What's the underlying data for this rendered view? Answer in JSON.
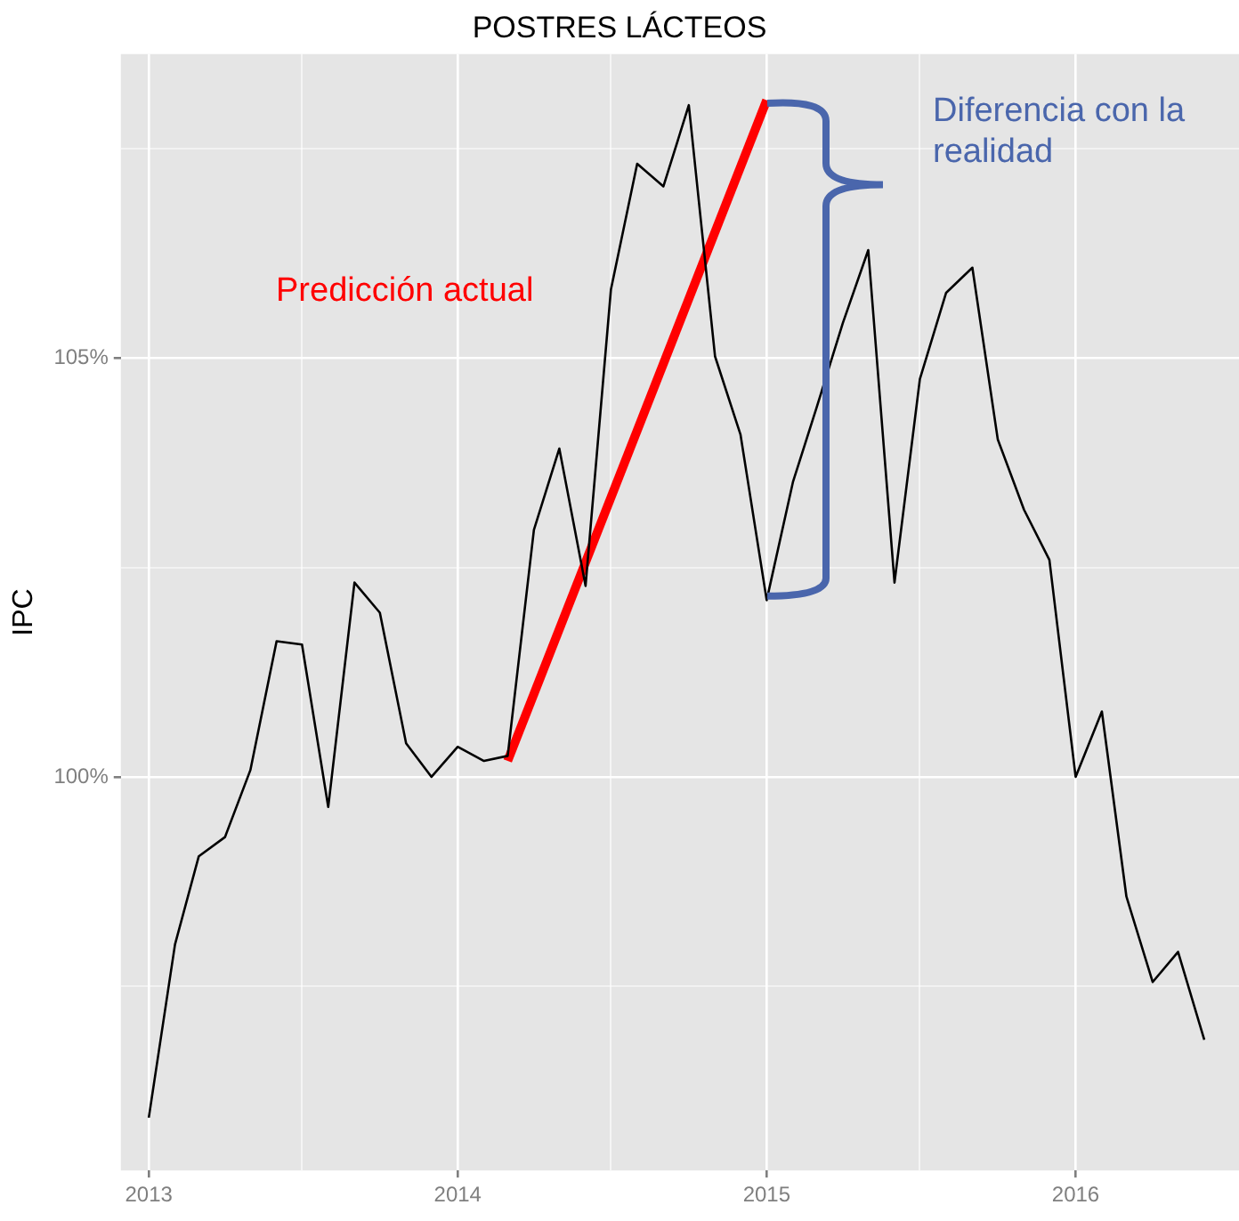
{
  "chart_data": {
    "type": "line",
    "title": "POSTRES LÁCTEOS",
    "ylabel": "IPC",
    "grid": true,
    "marker": "none",
    "line_style": "solid",
    "x": [
      "2013-01",
      "2013-02",
      "2013-03",
      "2013-04",
      "2013-05",
      "2013-06",
      "2013-07",
      "2013-08",
      "2013-09",
      "2013-10",
      "2013-11",
      "2013-12",
      "2014-01",
      "2014-02",
      "2014-03",
      "2014-04",
      "2014-05",
      "2014-06",
      "2014-07",
      "2014-08",
      "2014-09",
      "2014-10",
      "2014-11",
      "2014-12",
      "2015-01",
      "2015-02",
      "2015-03",
      "2015-04",
      "2015-05",
      "2015-06",
      "2015-07",
      "2015-08",
      "2015-09",
      "2015-10",
      "2015-11",
      "2015-12",
      "2016-01",
      "2016-02",
      "2016-03",
      "2016-04",
      "2016-05",
      "2016-06"
    ],
    "series": [
      {
        "color": "#000000",
        "values": [
          95.93,
          98.0,
          99.05,
          99.28,
          100.08,
          101.62,
          101.58,
          99.64,
          102.32,
          101.96,
          100.4,
          100.0,
          100.36,
          100.19,
          100.25,
          102.95,
          103.92,
          102.28,
          105.82,
          107.32,
          107.05,
          108.02,
          105.02,
          104.09,
          102.11,
          103.52,
          104.41,
          105.42,
          106.29,
          102.32,
          104.75,
          105.78,
          106.08,
          104.03,
          103.19,
          102.59,
          100.0,
          100.78,
          98.57,
          97.55,
          97.91,
          96.86
        ]
      },
      {
        "color": "#ff0000",
        "x": [
          "2014-03",
          "2015-01"
        ],
        "values": [
          100.19,
          108.08
        ]
      }
    ],
    "xlim": [
      "2012-11-29",
      "2016-07-12"
    ],
    "xticks": [
      "2013",
      {
        "value": "2013-07",
        "label": null
      },
      "2014",
      {
        "value": "2014-07",
        "label": null
      },
      "2015",
      {
        "value": "2015-07",
        "label": null
      },
      "2016"
    ],
    "ylim": [
      95.3,
      108.63
    ],
    "yticks": [
      {
        "value": 97.5,
        "label": null
      },
      {
        "value": 100,
        "label": "100%"
      },
      {
        "value": 102.5,
        "label": null
      },
      {
        "value": 105,
        "label": "105%"
      },
      {
        "value": 107.5,
        "label": null
      }
    ],
    "annotations": [
      "Predicción actual",
      "Diferencia con la realidad"
    ]
  }
}
